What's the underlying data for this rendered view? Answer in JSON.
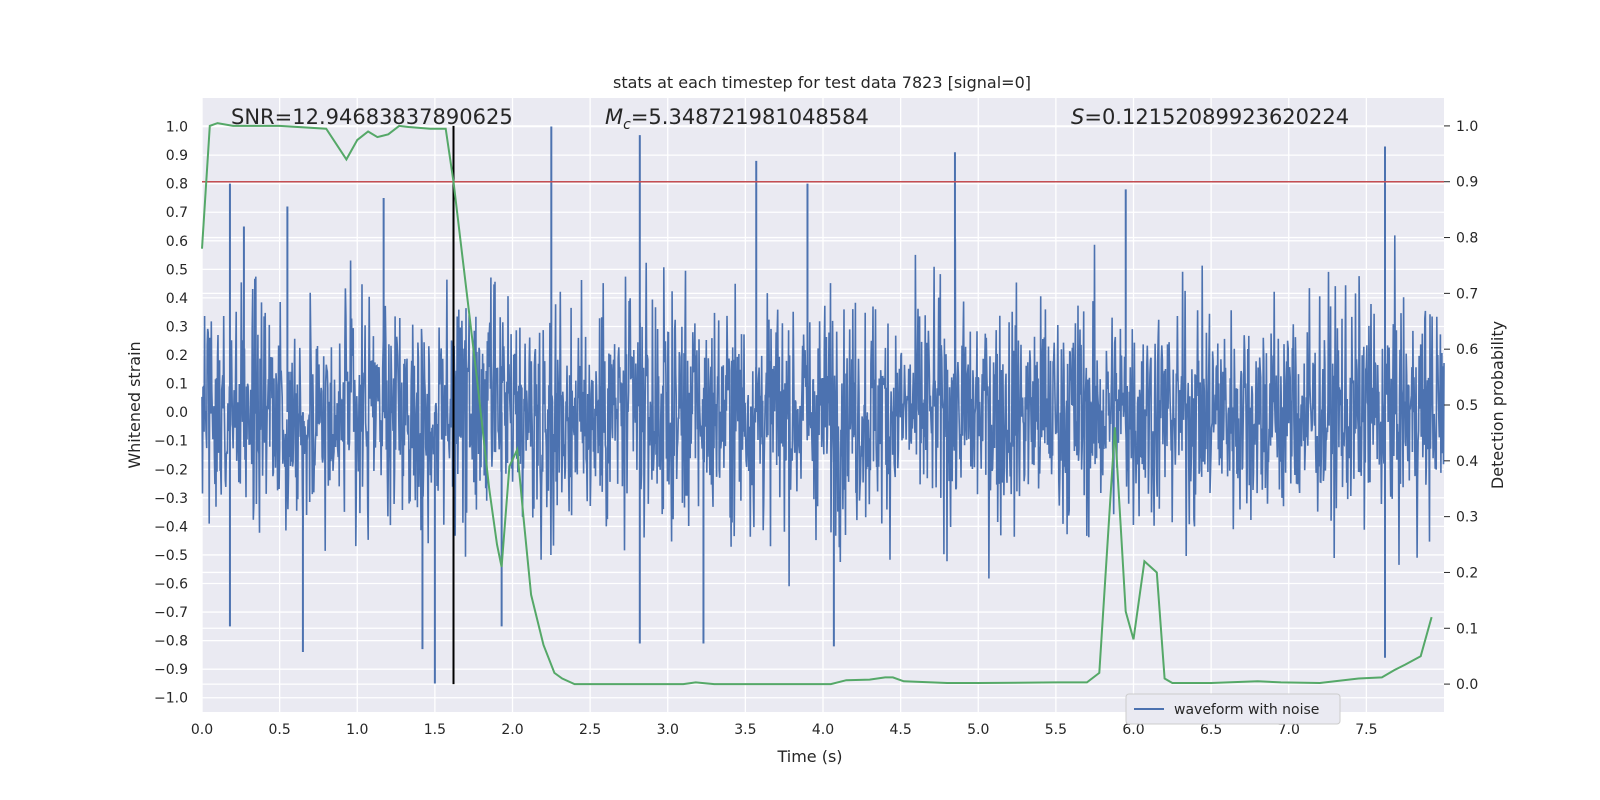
{
  "chart_data": {
    "type": "line",
    "title": "stats at each timestep for test data 7823 [signal=0]",
    "xlabel": "Time (s)",
    "ylabel": "Whitened strain",
    "y2label": "Detection probability",
    "xlim": [
      0,
      8
    ],
    "ylim": [
      -1.05,
      1.1
    ],
    "y2lim": [
      -0.05,
      1.05
    ],
    "xticks": [
      "0.0",
      "0.5",
      "1.0",
      "1.5",
      "2.0",
      "2.5",
      "3.0",
      "3.5",
      "4.0",
      "4.5",
      "5.0",
      "5.5",
      "6.0",
      "6.5",
      "7.0",
      "7.5"
    ],
    "yticks": [
      "1.0",
      "0.9",
      "0.8",
      "0.7",
      "0.6",
      "0.5",
      "0.4",
      "0.3",
      "0.2",
      "0.1",
      "0.0",
      "-0.1",
      "-0.2",
      "-0.3",
      "-0.4",
      "-0.5",
      "-0.6",
      "-0.7",
      "-0.8",
      "-0.9",
      "-1.0"
    ],
    "y2ticks": [
      "1.0",
      "0.9",
      "0.8",
      "0.7",
      "0.6",
      "0.5",
      "0.4",
      "0.3",
      "0.2",
      "0.1",
      "0.0"
    ],
    "grid": true,
    "legend_position": "lower-right",
    "annotations": {
      "snr": "SNR=12.94683837890625",
      "mc_prefix": "M",
      "mc_sub": "c",
      "mc_value": "=5.348721981048584",
      "s_prefix": "S",
      "s_value": "=0.12152089923620224"
    },
    "threshold": 0.9,
    "vline_x": 1.62,
    "colors": {
      "waveform": "#4c72b0",
      "probability": "#55a868",
      "threshold": "#c44e52",
      "vline": "#000000",
      "plot_bg": "#eaeaf2",
      "grid": "#ffffff"
    },
    "series": [
      {
        "name": "waveform with noise",
        "kind": "noise",
        "typical_amplitude": 0.35,
        "max_abs": 1.0,
        "peaks": [
          {
            "x": 0.18,
            "y": 0.8
          },
          {
            "x": 0.27,
            "y": 0.65
          },
          {
            "x": 0.55,
            "y": 0.72
          },
          {
            "x": 1.17,
            "y": 0.75
          },
          {
            "x": 1.62,
            "y": 0.8
          },
          {
            "x": 2.25,
            "y": 1.0
          },
          {
            "x": 2.82,
            "y": 0.97
          },
          {
            "x": 3.57,
            "y": 0.88
          },
          {
            "x": 3.9,
            "y": 0.8
          },
          {
            "x": 4.85,
            "y": 0.91
          },
          {
            "x": 5.95,
            "y": 0.78
          },
          {
            "x": 7.62,
            "y": 0.93
          },
          {
            "x": 0.65,
            "y": -0.84
          },
          {
            "x": 1.5,
            "y": -0.95
          },
          {
            "x": 1.42,
            "y": -0.83
          },
          {
            "x": 2.82,
            "y": -0.81
          },
          {
            "x": 4.07,
            "y": -0.82
          },
          {
            "x": 3.23,
            "y": -0.81
          },
          {
            "x": 7.62,
            "y": -0.86
          },
          {
            "x": 0.18,
            "y": -0.75
          },
          {
            "x": 1.93,
            "y": -0.75
          }
        ]
      },
      {
        "name": "detection probability",
        "kind": "line",
        "x": [
          0.0,
          0.05,
          0.1,
          0.2,
          0.5,
          0.8,
          0.93,
          1.0,
          1.07,
          1.13,
          1.2,
          1.27,
          1.33,
          1.47,
          1.57,
          1.62,
          1.68,
          1.77,
          1.85,
          1.9,
          1.93,
          1.98,
          2.03,
          2.07,
          2.12,
          2.2,
          2.27,
          2.32,
          2.4,
          2.6,
          2.8,
          3.0,
          3.1,
          3.18,
          3.3,
          3.5,
          3.8,
          4.05,
          4.15,
          4.3,
          4.4,
          4.45,
          4.52,
          4.8,
          5.0,
          5.5,
          5.7,
          5.78,
          5.88,
          5.95,
          6.0,
          6.07,
          6.15,
          6.2,
          6.25,
          6.5,
          6.8,
          6.95,
          7.2,
          7.45,
          7.6,
          7.68,
          7.75,
          7.85,
          7.92
        ],
        "y": [
          0.78,
          1.0,
          1.005,
          1.0,
          1.0,
          0.995,
          0.94,
          0.975,
          0.99,
          0.98,
          0.985,
          1.0,
          0.998,
          0.995,
          0.995,
          0.9,
          0.76,
          0.55,
          0.35,
          0.25,
          0.21,
          0.39,
          0.42,
          0.3,
          0.16,
          0.07,
          0.02,
          0.01,
          0.0,
          0.0,
          0.0,
          0.0,
          0.0,
          0.003,
          0.0,
          0.0,
          0.0,
          0.0,
          0.007,
          0.008,
          0.012,
          0.012,
          0.005,
          0.002,
          0.002,
          0.003,
          0.003,
          0.02,
          0.46,
          0.13,
          0.08,
          0.22,
          0.2,
          0.01,
          0.002,
          0.002,
          0.005,
          0.003,
          0.002,
          0.01,
          0.012,
          0.025,
          0.035,
          0.05,
          0.12
        ]
      }
    ]
  }
}
